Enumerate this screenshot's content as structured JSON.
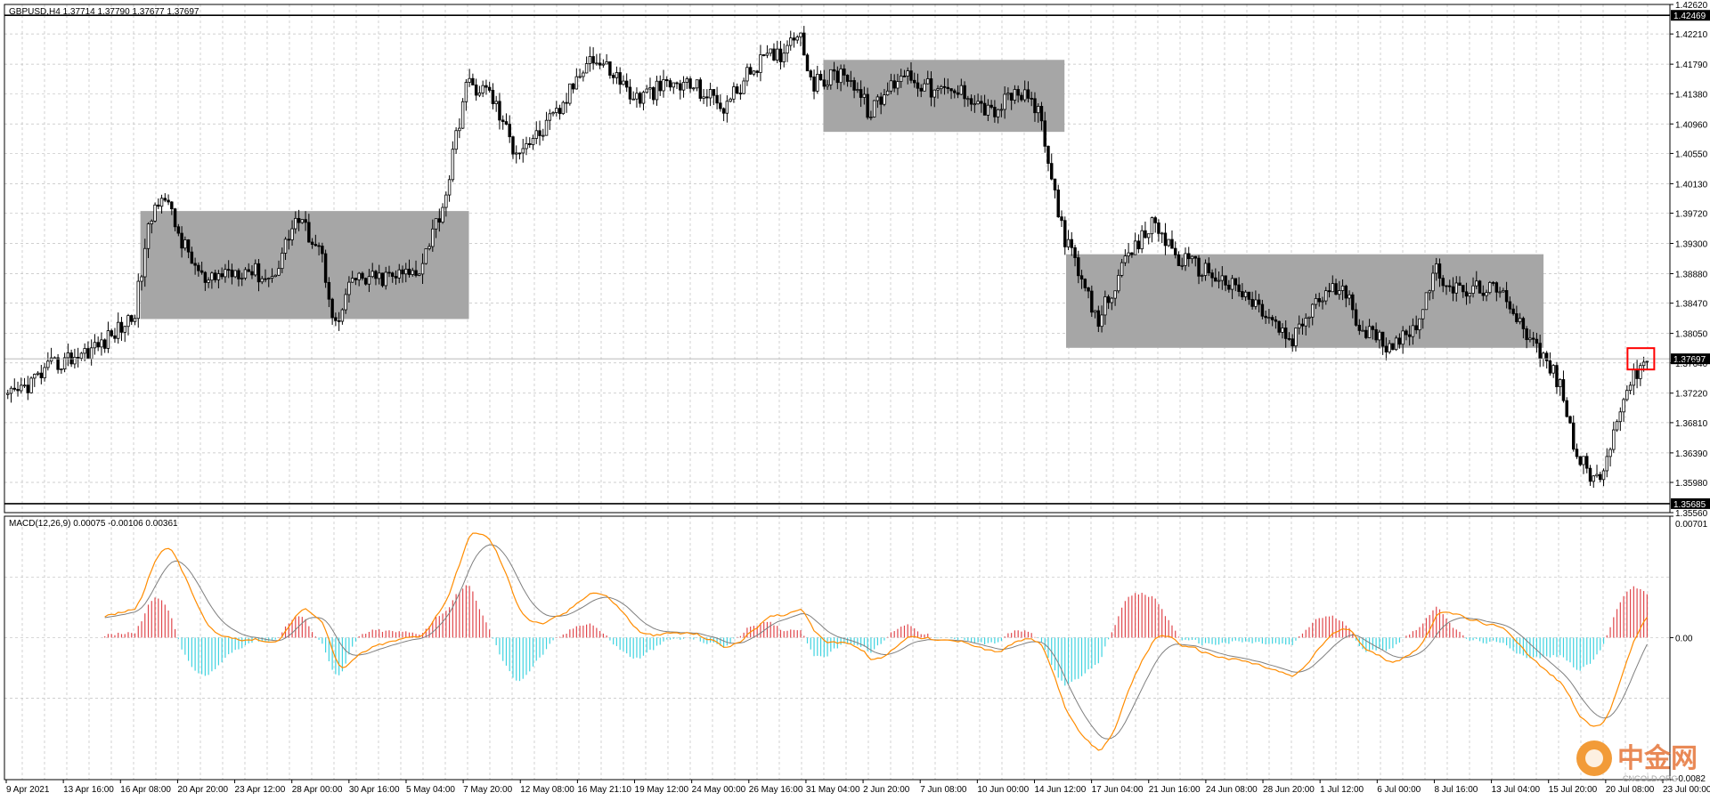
{
  "header": {
    "symbol_info": "GBPUSD,H4  1.37714 1.37790 1.37677 1.37697",
    "macd_info": "MACD(12,26,9) 0.00075 -0.00106 0.00361"
  },
  "watermark": {
    "cn": "中金网",
    "en": "CNGOLD.ORG"
  },
  "colors": {
    "candle": "#000000",
    "zone": "#a6a6a6",
    "macd_pos": "#e0474c",
    "macd_neg": "#3fd3e0",
    "macd_line": "#ff8c00",
    "signal_line": "#7f7f7f",
    "grid": "#c0c0c0",
    "highlight": "#ff0000"
  },
  "chart_data": [
    {
      "type": "candlestick",
      "symbol": "GBPUSD",
      "timeframe": "H4",
      "ylim": [
        1.3556,
        1.4262
      ],
      "price_ticks": [
        "1.42620",
        "1.42210",
        "1.41790",
        "1.41380",
        "1.40960",
        "1.40550",
        "1.40130",
        "1.39720",
        "1.39300",
        "1.38880",
        "1.38470",
        "1.38050",
        "1.37640",
        "1.37220",
        "1.36810",
        "1.36390",
        "1.35980",
        "1.35560"
      ],
      "x_labels": [
        "9 Apr 2021",
        "13 Apr 16:00",
        "16 Apr 08:00",
        "20 Apr 20:00",
        "23 Apr 12:00",
        "28 Apr 00:00",
        "30 Apr 16:00",
        "5 May 04:00",
        "7 May 20:00",
        "12 May 08:00",
        "16 May 21:10",
        "19 May 12:00",
        "24 May 00:00",
        "26 May 16:00",
        "31 May 04:00",
        "2 Jun 20:00",
        "7 Jun 08:00",
        "10 Jun 00:00",
        "14 Jun 12:00",
        "17 Jun 04:00",
        "21 Jun 16:00",
        "24 Jun 08:00",
        "28 Jun 20:00",
        "1 Jul 12:00",
        "6 Jul 00:00",
        "8 Jul 16:00",
        "13 Jul 04:00",
        "15 Jul 20:00",
        "20 Jul 08:00",
        "23 Jul 00:00"
      ],
      "horizontal_lines": [
        {
          "price": 1.42469,
          "label": "1.42469"
        },
        {
          "price": 1.35685,
          "label": "1.35685"
        }
      ],
      "current_price": {
        "price": 1.37697,
        "label": "1.37697"
      },
      "last_bar": {
        "open": 1.37714,
        "high": 1.3779,
        "low": 1.37677,
        "close": 1.37697
      },
      "close_path": [
        [
          0,
          1.371
        ],
        [
          0.03,
          1.376
        ],
        [
          0.06,
          1.379
        ],
        [
          0.08,
          1.383
        ],
        [
          0.09,
          1.396
        ],
        [
          0.097,
          1.4005
        ],
        [
          0.11,
          1.393
        ],
        [
          0.125,
          1.387
        ],
        [
          0.135,
          1.389
        ],
        [
          0.15,
          1.3895
        ],
        [
          0.165,
          1.388
        ],
        [
          0.18,
          1.3965
        ],
        [
          0.195,
          1.3925
        ],
        [
          0.205,
          1.381
        ],
        [
          0.215,
          1.388
        ],
        [
          0.23,
          1.388
        ],
        [
          0.255,
          1.389
        ],
        [
          0.272,
          1.399
        ],
        [
          0.285,
          1.415
        ],
        [
          0.3,
          1.414
        ],
        [
          0.315,
          1.406
        ],
        [
          0.33,
          1.408
        ],
        [
          0.345,
          1.412
        ],
        [
          0.36,
          1.419
        ],
        [
          0.375,
          1.417
        ],
        [
          0.39,
          1.413
        ],
        [
          0.41,
          1.415
        ],
        [
          0.425,
          1.415
        ],
        [
          0.445,
          1.412
        ],
        [
          0.465,
          1.418
        ],
        [
          0.48,
          1.4195
        ],
        [
          0.49,
          1.423
        ],
        [
          0.5,
          1.415
        ],
        [
          0.52,
          1.417
        ],
        [
          0.535,
          1.411
        ],
        [
          0.555,
          1.417
        ],
        [
          0.575,
          1.414
        ],
        [
          0.595,
          1.414
        ],
        [
          0.61,
          1.411
        ],
        [
          0.625,
          1.414
        ],
        [
          0.638,
          1.412
        ],
        [
          0.645,
          1.404
        ],
        [
          0.655,
          1.394
        ],
        [
          0.665,
          1.388
        ],
        [
          0.675,
          1.382
        ],
        [
          0.683,
          1.386
        ],
        [
          0.695,
          1.391
        ],
        [
          0.71,
          1.396
        ],
        [
          0.725,
          1.391
        ],
        [
          0.745,
          1.389
        ],
        [
          0.765,
          1.386
        ],
        [
          0.78,
          1.383
        ],
        [
          0.795,
          1.379
        ],
        [
          0.81,
          1.385
        ],
        [
          0.825,
          1.387
        ],
        [
          0.84,
          1.381
        ],
        [
          0.855,
          1.379
        ],
        [
          0.87,
          1.381
        ],
        [
          0.885,
          1.389
        ],
        [
          0.9,
          1.386
        ],
        [
          0.915,
          1.387
        ],
        [
          0.93,
          1.385
        ],
        [
          0.945,
          1.379
        ],
        [
          0.96,
          1.374
        ],
        [
          0.97,
          1.365
        ],
        [
          0.98,
          1.36
        ],
        [
          0.99,
          1.362
        ],
        [
          1.0,
          1.372
        ],
        [
          1.015,
          1.377
        ]
      ],
      "rectangles": [
        {
          "t0": 0.084,
          "t1": 0.287,
          "p_top": 1.3975,
          "p_bottom": 1.3825
        },
        {
          "t0": 0.506,
          "t1": 0.655,
          "p_top": 1.4185,
          "p_bottom": 1.4085
        },
        {
          "t0": 0.656,
          "t1": 0.951,
          "p_top": 1.3915,
          "p_bottom": 1.3785
        }
      ]
    },
    {
      "type": "macd",
      "params": "12,26,9",
      "values": {
        "macd": 0.00075,
        "signal": -0.00106,
        "histogram": 0.00361
      },
      "ylim": [
        -0.0082,
        0.00701
      ],
      "y_ticks": [
        "0.00701",
        "0.00",
        "-0.0082"
      ]
    }
  ]
}
